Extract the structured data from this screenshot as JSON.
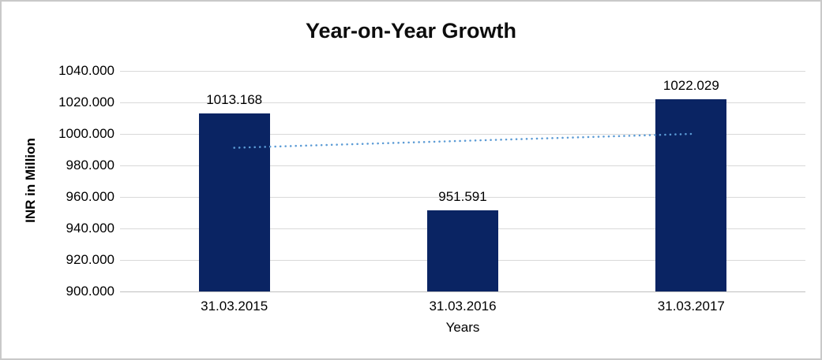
{
  "chart_data": {
    "type": "bar",
    "title": "Year-on-Year Growth",
    "xlabel": "Years",
    "ylabel": "INR in Million",
    "categories": [
      "31.03.2015",
      "31.03.2016",
      "31.03.2017"
    ],
    "values": [
      1013.168,
      951.591,
      1022.029
    ],
    "data_labels": [
      "1013.168",
      "951.591",
      "1022.029"
    ],
    "ylim": [
      900,
      1040
    ],
    "ytick_step": 20,
    "ytick_labels": [
      "900.000",
      "920.000",
      "940.000",
      "960.000",
      "980.000",
      "1000.000",
      "1020.000",
      "1040.000"
    ],
    "grid": true,
    "legend": "none",
    "colors": {
      "bar": "#0a2463",
      "trendline": "#5b9bd5",
      "gridline": "#d9d9d9",
      "axis_line": "#bfbfbf",
      "text": "#000000"
    },
    "trendline": {
      "type": "linear",
      "style": "dotted",
      "start_value": 991.2,
      "end_value": 1000.0
    }
  }
}
